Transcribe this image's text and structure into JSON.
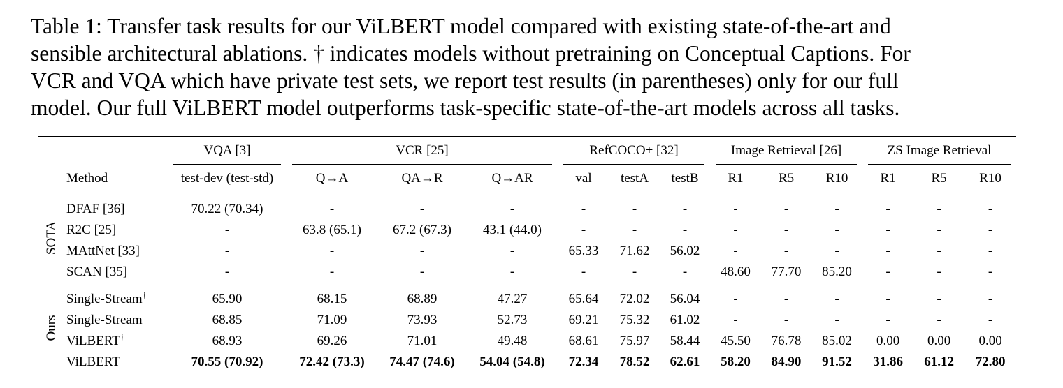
{
  "caption": {
    "lines": [
      "Table 1: Transfer task results for our ViLBERT model compared with existing state-of-the-art and",
      "sensible architectural ablations. † indicates models without pretraining on Conceptual Captions. For",
      "VCR and VQA which have private test sets, we report test results (in parentheses) only for our full",
      "model. Our full ViLBERT model outperforms task-specific state-of-the-art models across all tasks."
    ]
  },
  "table": {
    "groups": {
      "vqa": "VQA [3]",
      "vcr": "VCR [25]",
      "refcoco": "RefCOCO+ [32]",
      "retrieval": "Image Retrieval [26]",
      "zs_retrieval": "ZS Image Retrieval"
    },
    "columns": {
      "method": "Method",
      "testdev": "test-dev (test-std)",
      "qa": "Q→A",
      "qar": "QA→R",
      "qtoar": "Q→AR",
      "val": "val",
      "testa": "testA",
      "testb": "testB",
      "r1": "R1",
      "r5": "R5",
      "r10": "R10",
      "zr1": "R1",
      "zr5": "R5",
      "zr10": "R10"
    },
    "sections": [
      {
        "label": "SOTA",
        "rows": [
          {
            "method": "DFAF [36]",
            "dagger": "",
            "bold": false,
            "cells": [
              "70.22 (70.34)",
              "-",
              "-",
              "-",
              "-",
              "-",
              "-",
              "-",
              "-",
              "-",
              "-",
              "-",
              "-"
            ]
          },
          {
            "method": "R2C [25]",
            "dagger": "",
            "bold": false,
            "cells": [
              "-",
              "63.8 (65.1)",
              "67.2 (67.3)",
              "43.1 (44.0)",
              "-",
              "-",
              "-",
              "-",
              "-",
              "-",
              "-",
              "-",
              "-"
            ]
          },
          {
            "method": "MAttNet [33]",
            "dagger": "",
            "bold": false,
            "cells": [
              "-",
              "-",
              "-",
              "-",
              "65.33",
              "71.62",
              "56.02",
              "-",
              "-",
              "-",
              "-",
              "-",
              "-"
            ]
          },
          {
            "method": "SCAN [35]",
            "dagger": "",
            "bold": false,
            "cells": [
              "-",
              "-",
              "-",
              "-",
              "-",
              "-",
              "-",
              "48.60",
              "77.70",
              "85.20",
              "-",
              "-",
              "-"
            ]
          }
        ]
      },
      {
        "label": "Ours",
        "rows": [
          {
            "method": "Single-Stream",
            "dagger": "†",
            "bold": false,
            "cells": [
              "65.90",
              "68.15",
              "68.89",
              "47.27",
              "65.64",
              "72.02",
              "56.04",
              "-",
              "-",
              "-",
              "-",
              "-",
              "-"
            ]
          },
          {
            "method": "Single-Stream",
            "dagger": "",
            "bold": false,
            "cells": [
              "68.85",
              "71.09",
              "73.93",
              "52.73",
              "69.21",
              "75.32",
              "61.02",
              "-",
              "-",
              "-",
              "-",
              "-",
              "-"
            ]
          },
          {
            "method": "ViLBERT",
            "dagger": "†",
            "bold": false,
            "cells": [
              "68.93",
              "69.26",
              "71.01",
              "49.48",
              "68.61",
              "75.97",
              "58.44",
              "45.50",
              "76.78",
              "85.02",
              "0.00",
              "0.00",
              "0.00"
            ]
          },
          {
            "method": "ViLBERT",
            "dagger": "",
            "bold": true,
            "cells": [
              "70.55 (70.92)",
              "72.42 (73.3)",
              "74.47 (74.6)",
              "54.04 (54.8)",
              "72.34",
              "78.52",
              "62.61",
              "58.20",
              "84.90",
              "91.52",
              "31.86",
              "61.12",
              "72.80"
            ]
          }
        ]
      }
    ]
  }
}
